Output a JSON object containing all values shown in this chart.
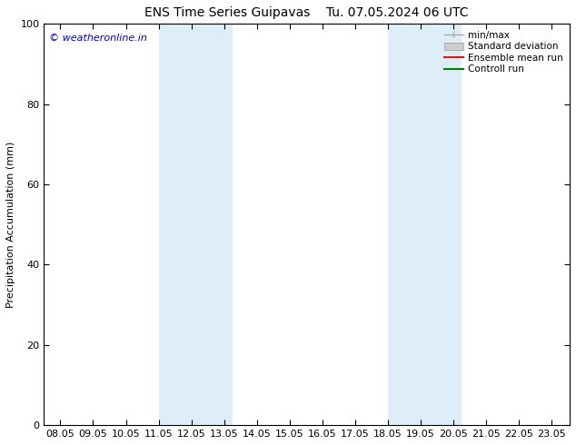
{
  "title_left": "ENS Time Series Guipavas",
  "title_right": "Tu. 07.05.2024 06 UTC",
  "ylabel": "Precipitation Accumulation (mm)",
  "xlim_min": 7.5,
  "xlim_max": 23.55,
  "ylim_min": 0,
  "ylim_max": 100,
  "xtick_labels": [
    "08.05",
    "09.05",
    "10.05",
    "11.05",
    "12.05",
    "13.05",
    "14.05",
    "15.05",
    "16.05",
    "17.05",
    "18.05",
    "19.05",
    "20.05",
    "21.05",
    "22.05",
    "23.05"
  ],
  "xtick_positions": [
    8,
    9,
    10,
    11,
    12,
    13,
    14,
    15,
    16,
    17,
    18,
    19,
    20,
    21,
    22,
    23
  ],
  "ytick_labels": [
    "0",
    "20",
    "40",
    "60",
    "80",
    "100"
  ],
  "ytick_positions": [
    0,
    20,
    40,
    60,
    80,
    100
  ],
  "shaded_regions": [
    {
      "x_start": 11.0,
      "x_end": 13.25,
      "color": "#ddeef8"
    },
    {
      "x_start": 18.0,
      "x_end": 20.25,
      "color": "#ddeef8"
    }
  ],
  "copyright_text": "© weatheronline.in",
  "copyright_color": "#0000cc",
  "legend_entries": [
    {
      "label": "min/max",
      "type": "minmax",
      "color": "#aaaaaa"
    },
    {
      "label": "Standard deviation",
      "type": "stddev",
      "color": "#cccccc"
    },
    {
      "label": "Ensemble mean run",
      "type": "line",
      "color": "#ff0000"
    },
    {
      "label": "Controll run",
      "type": "line",
      "color": "#008000"
    }
  ],
  "background_color": "#ffffff",
  "axes_background": "#ffffff",
  "font_size": 8,
  "title_font_size": 10
}
